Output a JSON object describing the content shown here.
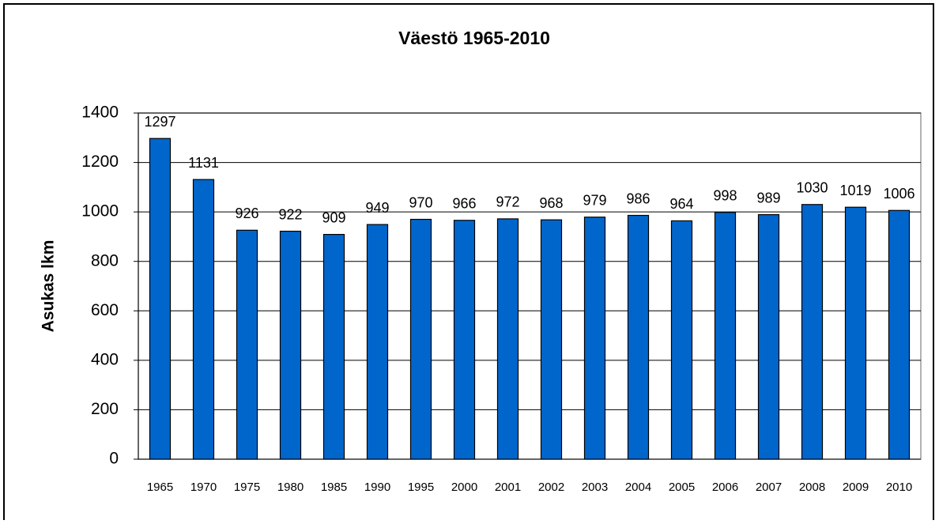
{
  "chart_data": {
    "type": "bar",
    "title": "Väestö 1965-2010",
    "y_label": "Asukas lkm",
    "categories": [
      "1965",
      "1970",
      "1975",
      "1980",
      "1985",
      "1990",
      "1995",
      "2000",
      "2001",
      "2002",
      "2003",
      "2004",
      "2005",
      "2006",
      "2007",
      "2008",
      "2009",
      "2010"
    ],
    "values": [
      1297,
      1131,
      926,
      922,
      909,
      949,
      970,
      966,
      972,
      968,
      979,
      986,
      964,
      998,
      989,
      1030,
      1019,
      1006
    ],
    "color": "#0066cc",
    "ylim": [
      0,
      1400
    ],
    "yticks": [
      0,
      200,
      400,
      600,
      800,
      1000,
      1200,
      1400
    ],
    "grid": true
  }
}
